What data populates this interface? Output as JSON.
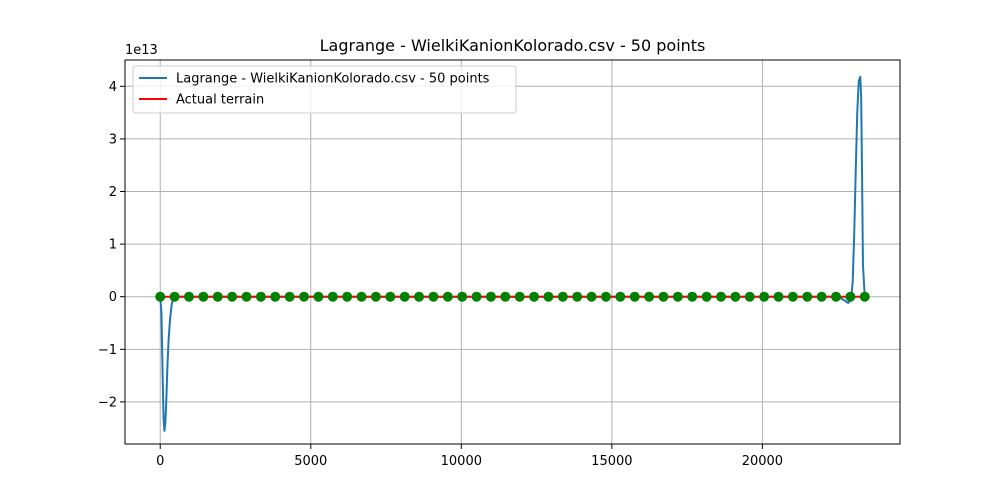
{
  "chart_data": {
    "type": "line",
    "title": "Lagrange - WielkiKanionKolorado.csv - 50 points",
    "xlabel": "",
    "ylabel": "",
    "y_offset_text": "1e13",
    "xlim": [
      -1170,
      24570
    ],
    "ylim": [
      -2.8,
      4.5
    ],
    "y_unit_scale": 10000000000000.0,
    "x_ticks": [
      0,
      5000,
      10000,
      15000,
      20000
    ],
    "x_tick_labels": [
      "0",
      "5000",
      "10000",
      "15000",
      "20000"
    ],
    "y_ticks": [
      -2,
      -1,
      0,
      1,
      2,
      3,
      4
    ],
    "y_tick_labels": [
      "−2",
      "−1",
      "0",
      "1",
      "2",
      "3",
      "4"
    ],
    "grid": true,
    "legend_position": "upper-left",
    "series": [
      {
        "name": "Lagrange - WielkiKanionKolorado.csv - 50 points",
        "color": "#1f77b4",
        "x": [
          0,
          40,
          80,
          110,
          140,
          170,
          200,
          240,
          280,
          330,
          380,
          430,
          480,
          520,
          560,
          700,
          1000,
          5000,
          10000,
          15000,
          20000,
          22500,
          22700,
          22850,
          22950,
          23000,
          23050,
          23100,
          23150,
          23200,
          23250,
          23280,
          23310,
          23340,
          23400
        ],
        "y": [
          0,
          -0.3,
          -1.5,
          -2.3,
          -2.55,
          -2.4,
          -2.0,
          -1.3,
          -0.8,
          -0.4,
          -0.15,
          -0.03,
          0.05,
          0.04,
          0.01,
          0,
          0,
          0,
          0,
          0,
          0,
          0,
          -0.06,
          -0.12,
          -0.05,
          0.3,
          1.2,
          2.4,
          3.5,
          4.1,
          4.18,
          3.8,
          2.3,
          0.6,
          0
        ]
      },
      {
        "name": "Actual terrain",
        "color": "#ff0000",
        "x": [
          0,
          23400
        ],
        "y": [
          0,
          0
        ]
      }
    ],
    "nodes": {
      "color": "#008000",
      "count": 50,
      "x_start": 0,
      "x_end": 23400,
      "y": 0
    }
  }
}
